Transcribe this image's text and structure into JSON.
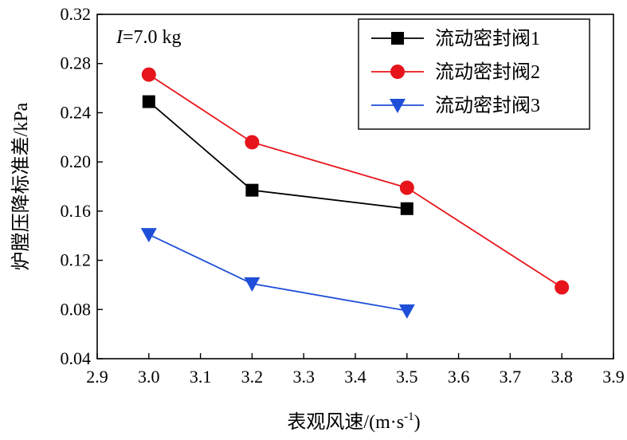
{
  "chart_data": {
    "type": "line",
    "title": "",
    "annotation": {
      "var": "I",
      "rest": "=7.0 kg"
    },
    "xlabel": {
      "main": "表观风速/(m·s",
      "sup": "-1",
      "close": ")"
    },
    "ylabel": "炉膛压降标准差/kPa",
    "xlim": [
      2.9,
      3.9
    ],
    "ylim": [
      0.04,
      0.32
    ],
    "xticks": [
      2.9,
      3.0,
      3.1,
      3.2,
      3.3,
      3.4,
      3.5,
      3.6,
      3.7,
      3.8,
      3.9
    ],
    "xtick_labels": [
      "2.9",
      "3.0",
      "3.1",
      "3.2",
      "3.3",
      "3.4",
      "3.5",
      "3.6",
      "3.7",
      "3.8",
      "3.9"
    ],
    "yticks": [
      0.04,
      0.08,
      0.12,
      0.16,
      0.2,
      0.24,
      0.28,
      0.32
    ],
    "ytick_labels": [
      "0.04",
      "0.08",
      "0.12",
      "0.16",
      "0.20",
      "0.24",
      "0.28",
      "0.32"
    ],
    "grid": false,
    "legend_position": "top-right",
    "series": [
      {
        "name": "流动密封阀1",
        "color": "#000000",
        "marker": "square",
        "x": [
          3.0,
          3.2,
          3.5
        ],
        "y": [
          0.249,
          0.177,
          0.162
        ]
      },
      {
        "name": "流动密封阀2",
        "color": "#e8141b",
        "marker": "circle",
        "x": [
          3.0,
          3.2,
          3.5,
          3.8
        ],
        "y": [
          0.271,
          0.216,
          0.179,
          0.098
        ]
      },
      {
        "name": "流动密封阀3",
        "color": "#1f4fd8",
        "marker": "triangle-down",
        "x": [
          3.0,
          3.2,
          3.5
        ],
        "y": [
          0.141,
          0.101,
          0.079
        ]
      }
    ]
  }
}
